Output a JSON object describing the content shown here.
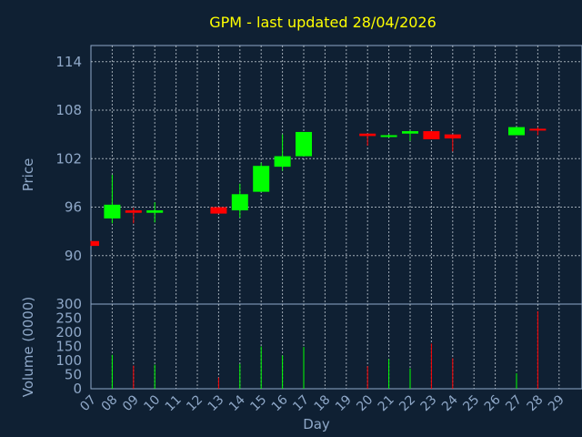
{
  "chart_data": {
    "type": "candlestick",
    "title": "GPM - last updated 28/04/2026",
    "xlabel": "Day",
    "price_ylabel": "Price",
    "volume_ylabel": "Volume (0000)",
    "x_ticks": [
      "07",
      "08",
      "09",
      "10",
      "11",
      "12",
      "13",
      "14",
      "15",
      "16",
      "17",
      "18",
      "19",
      "20",
      "21",
      "22",
      "23",
      "24",
      "25",
      "26",
      "27",
      "28",
      "29"
    ],
    "price_ylim": [
      84,
      116
    ],
    "price_yticks": [
      "114",
      "108",
      "102",
      "96",
      "90"
    ],
    "volume_ylim": [
      0,
      300
    ],
    "volume_yticks": [
      "300",
      "250",
      "200",
      "150",
      "100",
      "50",
      "0"
    ],
    "colors": {
      "up": "#00ff00",
      "down": "#ff0000",
      "background": "#0f2033",
      "text": "#8fa8c8",
      "title": "#ffff00"
    },
    "candles": [
      {
        "day": "07",
        "open": 91.8,
        "high": 91.8,
        "low": 91.2,
        "close": 91.2,
        "volume": 0
      },
      {
        "day": "08",
        "open": 94.6,
        "high": 100.0,
        "low": 94.0,
        "close": 96.3,
        "volume": 120
      },
      {
        "day": "09",
        "open": 95.6,
        "high": 95.9,
        "low": 94.0,
        "close": 95.3,
        "volume": 82
      },
      {
        "day": "10",
        "open": 95.3,
        "high": 96.6,
        "low": 94.1,
        "close": 95.6,
        "volume": 85
      },
      {
        "day": "13",
        "open": 96.0,
        "high": 96.0,
        "low": 95.2,
        "close": 95.2,
        "volume": 40
      },
      {
        "day": "14",
        "open": 95.6,
        "high": 98.9,
        "low": 94.7,
        "close": 97.6,
        "volume": 88
      },
      {
        "day": "15",
        "open": 97.9,
        "high": 101.5,
        "low": 97.9,
        "close": 101.1,
        "volume": 150
      },
      {
        "day": "16",
        "open": 101.0,
        "high": 105.0,
        "low": 100.5,
        "close": 102.3,
        "volume": 118
      },
      {
        "day": "17",
        "open": 102.3,
        "high": 105.3,
        "low": 102.3,
        "close": 105.3,
        "volume": 148
      },
      {
        "day": "20",
        "open": 105.1,
        "high": 105.1,
        "low": 103.6,
        "close": 104.8,
        "volume": 80
      },
      {
        "day": "21",
        "open": 104.7,
        "high": 105.0,
        "low": 104.6,
        "close": 104.9,
        "volume": 105
      },
      {
        "day": "22",
        "open": 105.1,
        "high": 105.5,
        "low": 104.2,
        "close": 105.4,
        "volume": 72
      },
      {
        "day": "23",
        "open": 105.4,
        "high": 105.4,
        "low": 104.4,
        "close": 104.4,
        "volume": 160
      },
      {
        "day": "24",
        "open": 105.0,
        "high": 105.0,
        "low": 102.9,
        "close": 104.5,
        "volume": 108
      },
      {
        "day": "27",
        "open": 104.9,
        "high": 105.9,
        "low": 104.9,
        "close": 105.9,
        "volume": 55
      },
      {
        "day": "28",
        "open": 105.7,
        "high": 105.9,
        "low": 104.9,
        "close": 105.5,
        "volume": 275
      }
    ]
  }
}
